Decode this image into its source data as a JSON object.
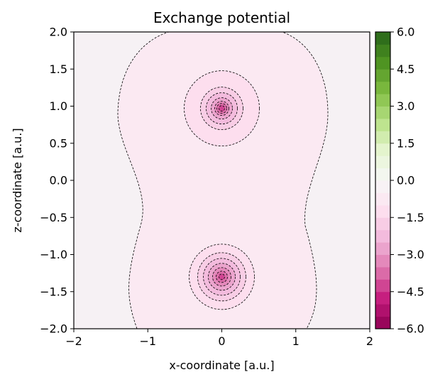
{
  "chart_data": {
    "type": "contour",
    "title": "Exchange potential",
    "xlabel": "x-coordinate [a.u.]",
    "ylabel": "z-coordinate [a.u.]",
    "xlim": [
      -2,
      2
    ],
    "ylim": [
      -2,
      2
    ],
    "x_ticks": [
      -2,
      -1,
      0,
      1,
      2
    ],
    "x_tick_labels": [
      "−2",
      "−1",
      "0",
      "1",
      "2"
    ],
    "y_ticks": [
      -2.0,
      -1.5,
      -1.0,
      -0.5,
      0.0,
      0.5,
      1.0,
      1.5,
      2.0
    ],
    "y_tick_labels": [
      "−2.0",
      "−1.5",
      "−1.0",
      "−0.5",
      "0.0",
      "0.5",
      "1.0",
      "1.5",
      "2.0"
    ],
    "colormap": "PiYG",
    "vmin": -6.0,
    "vmax": 6.0,
    "n_levels": 24,
    "colorbar_ticks": [
      6.0,
      4.5,
      3.0,
      1.5,
      0.0,
      -1.5,
      -3.0,
      -4.5,
      -6.0
    ],
    "colorbar_tick_labels": [
      "6.0",
      "4.5",
      "3.0",
      "1.5",
      "0.0",
      "−1.5",
      "−3.0",
      "−4.5",
      "−6.0"
    ],
    "centers": [
      {
        "x": 0.0,
        "z": 0.97,
        "min_value": -6.0
      },
      {
        "x": 0.0,
        "z": -1.3,
        "min_value": -5.0
      }
    ],
    "contour_levels_approx": [
      -0.5,
      -1.0,
      -1.5,
      -2.0,
      -2.5,
      -3.0,
      -3.5,
      -4.0,
      -4.5
    ]
  }
}
